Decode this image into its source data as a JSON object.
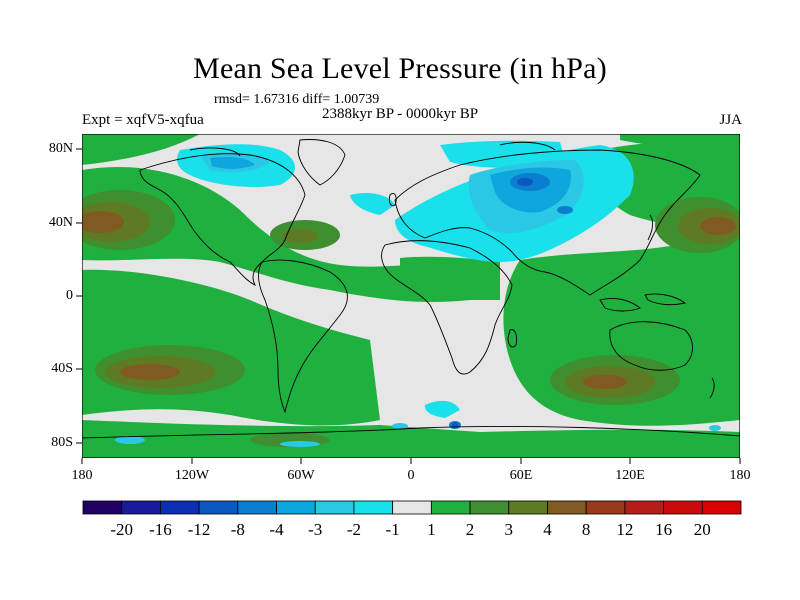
{
  "title": "Mean Sea Level Pressure (in hPa)",
  "stats": "rmsd= 1.67316  diff= 1.00739",
  "experiment": "Expt = xqfV5-xqfua",
  "period": "2388kyr BP - 0000kyr BP",
  "season": "JJA",
  "y_axis": [
    "80N",
    "40N",
    "0",
    "40S",
    "80S"
  ],
  "x_axis": [
    "180",
    "120W",
    "60W",
    "0",
    "60E",
    "120E",
    "180"
  ],
  "colorbar": {
    "labels": [
      "-20",
      "-16",
      "-12",
      "-8",
      "-4",
      "-3",
      "-2",
      "-1",
      "1",
      "2",
      "3",
      "4",
      "8",
      "12",
      "16",
      "20"
    ],
    "colors": [
      "#200060",
      "#1a1a9a",
      "#0a2fb3",
      "#0a58c0",
      "#0a7fd0",
      "#0fa5dd",
      "#2bc8e6",
      "#19e0ea",
      "#e6e6e6",
      "#20b040",
      "#3f8f2f",
      "#5e7a22",
      "#805a20",
      "#9a3a1c",
      "#b41e18",
      "#c80c0c",
      "#d80000"
    ]
  }
}
